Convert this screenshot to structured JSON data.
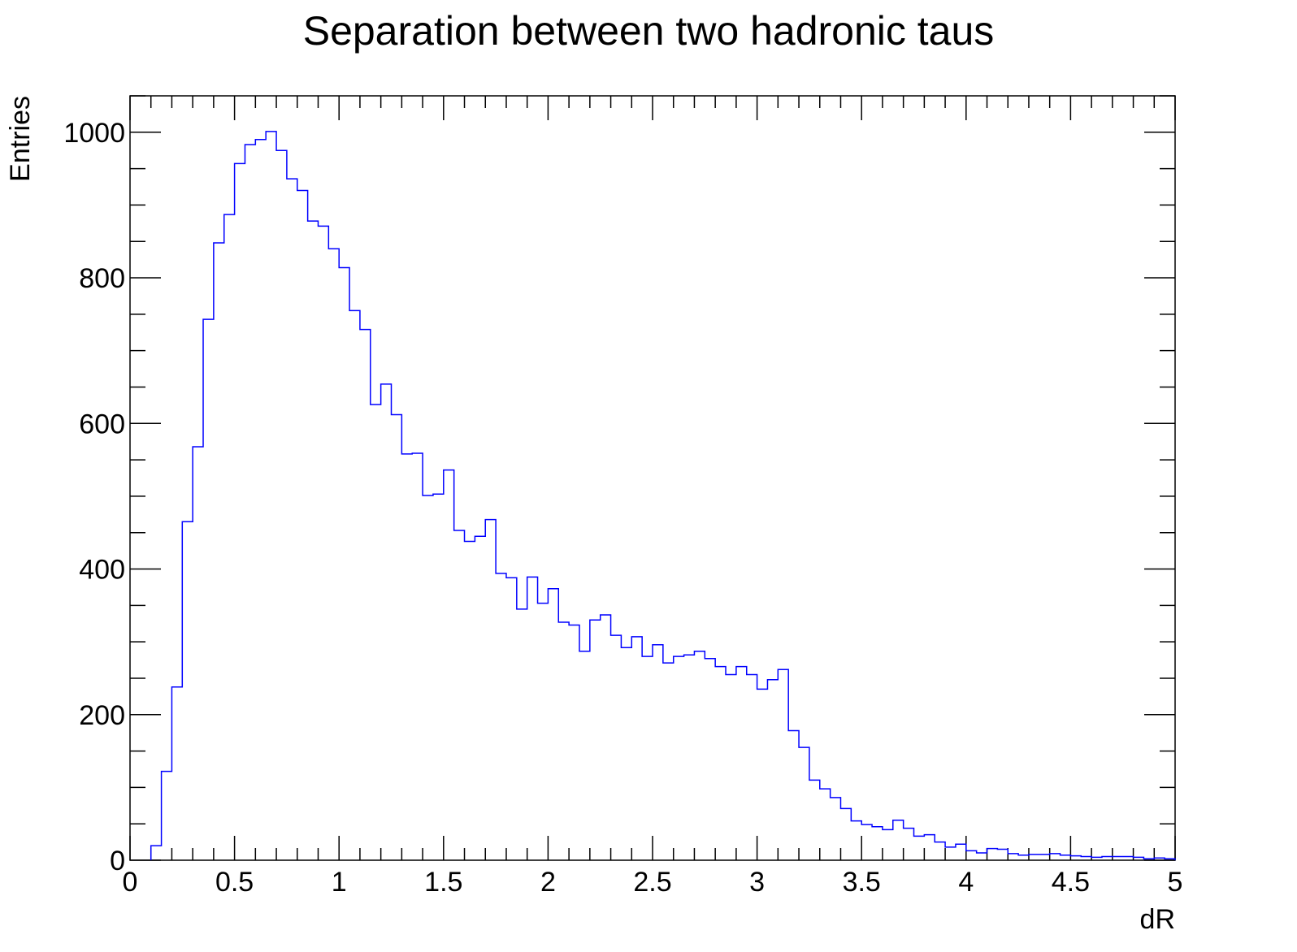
{
  "chart_data": {
    "type": "histogram",
    "title": "Separation between two hadronic taus",
    "xlabel": "dR",
    "ylabel": "Entries",
    "xlim": [
      0,
      5
    ],
    "ylim": [
      0,
      1050
    ],
    "bin_width": 0.05,
    "line_color": "#0000ff",
    "x_ticks": [
      "0",
      "0.5",
      "1",
      "1.5",
      "2",
      "2.5",
      "3",
      "3.5",
      "4",
      "4.5",
      "5"
    ],
    "y_ticks": [
      "0",
      "200",
      "400",
      "600",
      "800",
      "1000"
    ],
    "grid": false,
    "bin_edges_start": 0.1,
    "values": [
      20,
      122,
      238,
      465,
      568,
      743,
      848,
      887,
      957,
      983,
      990,
      1001,
      975,
      936,
      920,
      878,
      871,
      840,
      814,
      755,
      729,
      626,
      654,
      612,
      558,
      559,
      501,
      503,
      536,
      453,
      438,
      445,
      468,
      394,
      388,
      345,
      389,
      353,
      373,
      327,
      323,
      287,
      330,
      337,
      309,
      292,
      307,
      280,
      296,
      271,
      280,
      282,
      287,
      277,
      266,
      255,
      266,
      255,
      235,
      248,
      262,
      178,
      155,
      110,
      98,
      86,
      71,
      54,
      49,
      46,
      42,
      55,
      44,
      33,
      35,
      25,
      18,
      22,
      13,
      10,
      16,
      15,
      9,
      7,
      8,
      8,
      9,
      7,
      6,
      5,
      4,
      5,
      5,
      5,
      4,
      2,
      3,
      2
    ]
  }
}
